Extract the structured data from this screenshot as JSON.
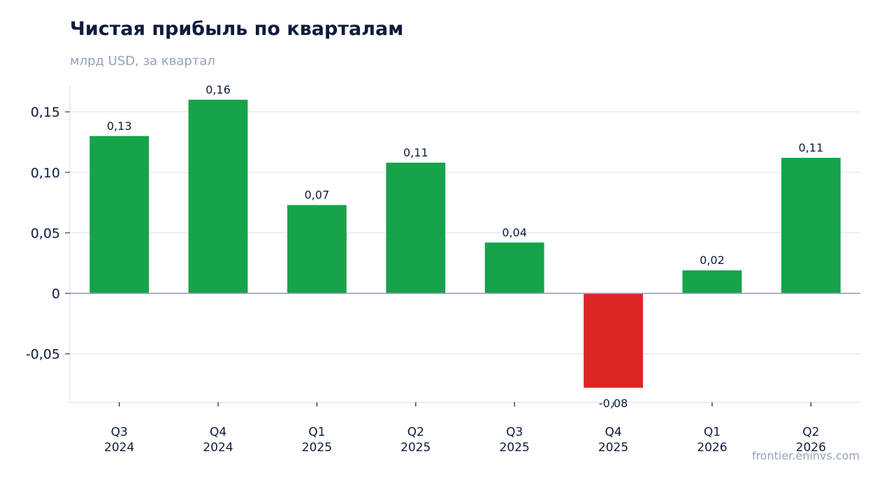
{
  "title": "Чистая прибыль по кварталам",
  "subtitle": "млрд USD, за квартал",
  "source": "frontier.eninvs.com",
  "colors": {
    "positive": "#17a34a",
    "negative": "#dc2626",
    "grid": "#e2e6ef",
    "zero_line": "#94a3b8",
    "text": "#0e1b3d",
    "muted": "#94a3b8"
  },
  "chart_data": {
    "type": "bar",
    "categories": [
      [
        "Q3",
        "2024"
      ],
      [
        "Q4",
        "2024"
      ],
      [
        "Q1",
        "2025"
      ],
      [
        "Q2",
        "2025"
      ],
      [
        "Q3",
        "2025"
      ],
      [
        "Q4",
        "2025"
      ],
      [
        "Q1",
        "2026"
      ],
      [
        "Q2",
        "2026"
      ]
    ],
    "values": [
      0.13,
      0.16,
      0.073,
      0.108,
      0.042,
      -0.078,
      0.019,
      0.112
    ],
    "data_labels": [
      "0,13",
      "0,16",
      "0,07",
      "0,11",
      "0,04",
      "-0,08",
      "0,02",
      "0,11"
    ],
    "yticks": [
      -0.05,
      0,
      0.05,
      0.1,
      0.15
    ],
    "ytick_labels": [
      "-0,05",
      "0",
      "0,05",
      "0,10",
      "0,15"
    ],
    "ylim": [
      -0.09,
      0.172
    ],
    "grid": true,
    "legend": "none",
    "xlabel": "",
    "ylabel": ""
  }
}
